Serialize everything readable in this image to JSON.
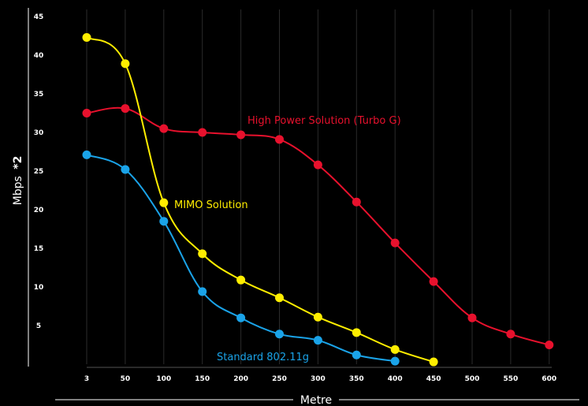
{
  "chart_data": {
    "type": "line",
    "xlabel": "Metre",
    "ylabel": "Mbps",
    "ylabel_suffix": "*2",
    "categories": [
      "3",
      "50",
      "100",
      "150",
      "200",
      "250",
      "300",
      "350",
      "400",
      "450",
      "500",
      "550",
      "600"
    ],
    "yticks": [
      5,
      10,
      15,
      20,
      25,
      30,
      35,
      40,
      45
    ],
    "ylim": [
      0,
      45
    ],
    "grid": "vertical",
    "legend": "inline-labels",
    "series": [
      {
        "name": "High Power Solution (Turbo G)",
        "color": "#e8112d",
        "values": [
          32.5,
          33.1,
          30.5,
          30.0,
          29.7,
          29.1,
          25.8,
          21.0,
          15.7,
          10.7,
          6.0,
          3.9,
          2.5
        ]
      },
      {
        "name": "MIMO Solution",
        "color": "#ffee00",
        "values": [
          42.3,
          38.9,
          20.9,
          14.3,
          10.9,
          8.6,
          6.1,
          4.1,
          1.9,
          0.3,
          null,
          null,
          null
        ]
      },
      {
        "name": "Standard 802.11g",
        "color": "#1aa3e8",
        "values": [
          27.1,
          25.2,
          18.5,
          9.4,
          6.0,
          3.9,
          3.1,
          1.2,
          0.4,
          null,
          null,
          null,
          null
        ]
      }
    ]
  }
}
